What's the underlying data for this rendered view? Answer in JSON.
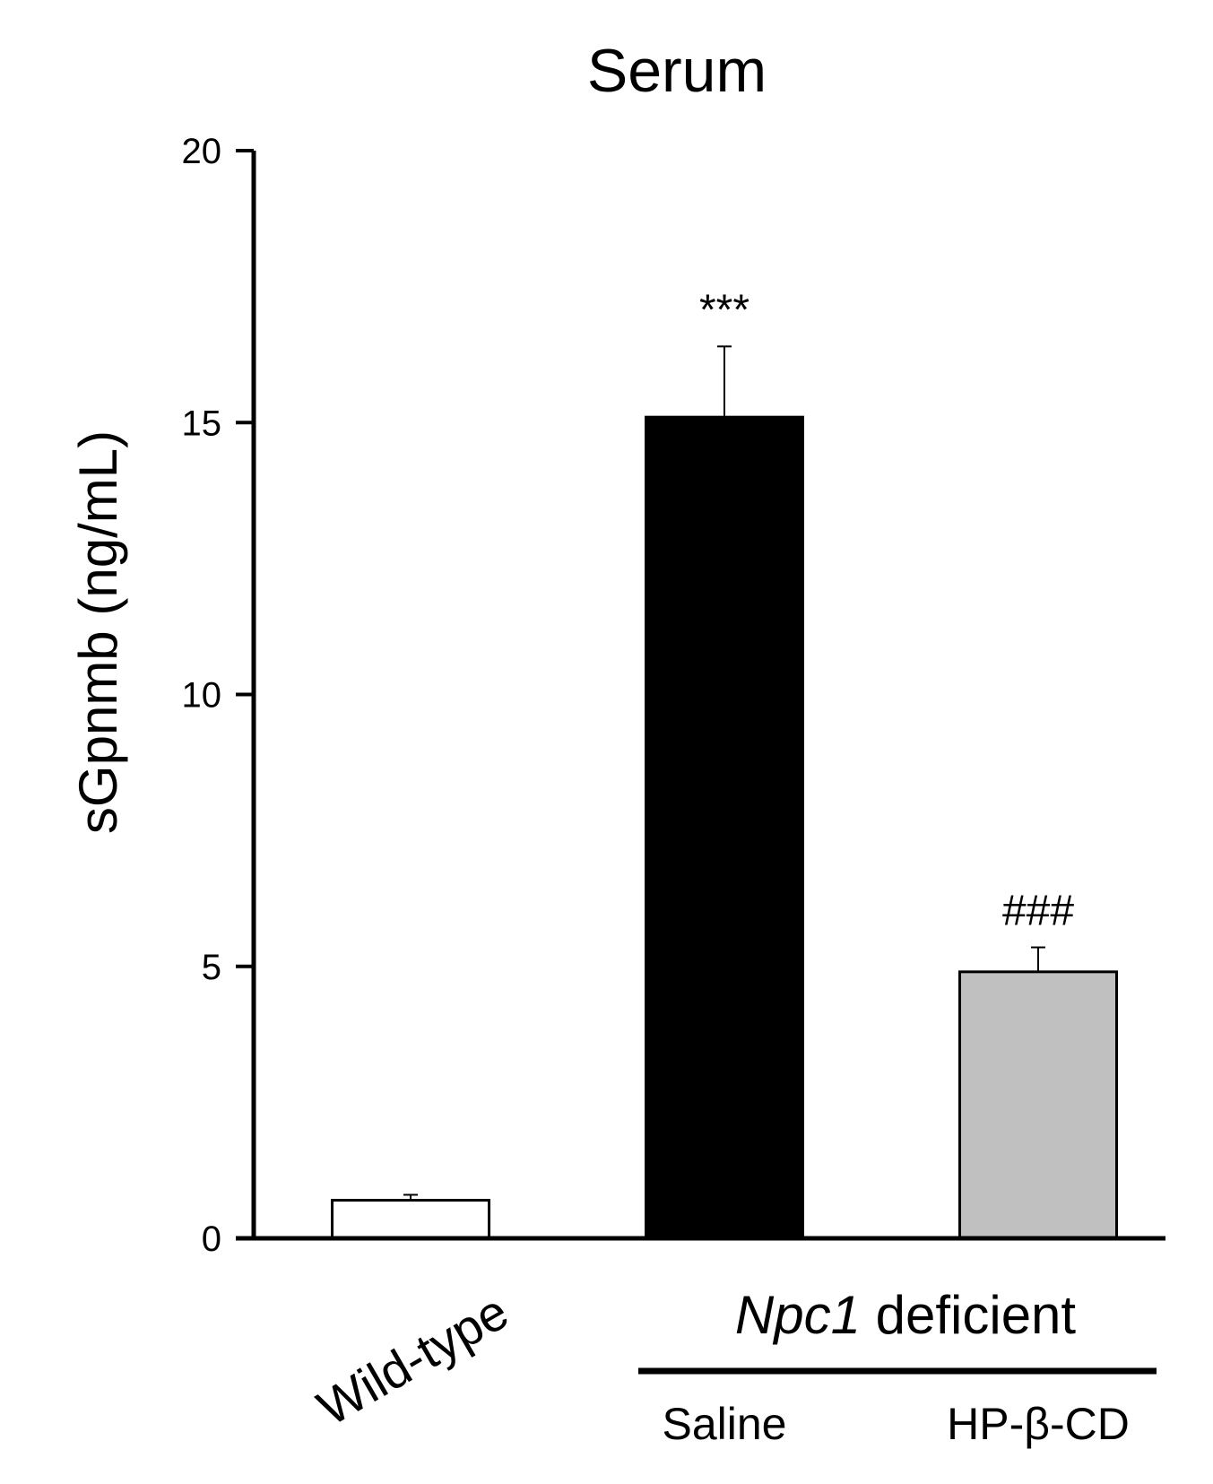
{
  "chart_data": {
    "type": "bar",
    "title": "Serum",
    "ylabel": "sGpnmb (ng/mL)",
    "xlabel": "",
    "ylim": [
      0,
      20
    ],
    "yticks": [
      0,
      5,
      10,
      15,
      20
    ],
    "grid": false,
    "categories": [
      "Wild-type",
      "Saline",
      "HP-β-CD"
    ],
    "values": [
      0.7,
      15.1,
      4.9
    ],
    "errors": [
      0.1,
      1.3,
      0.45
    ],
    "bar_colors": [
      "#ffffff",
      "#000000",
      "#c0c0c0"
    ],
    "significance": [
      "",
      "***",
      "###"
    ],
    "group_label": {
      "italic_part": "Npc1",
      "rest": " deficient",
      "spans": [
        "Saline",
        "HP-β-CD"
      ]
    }
  }
}
